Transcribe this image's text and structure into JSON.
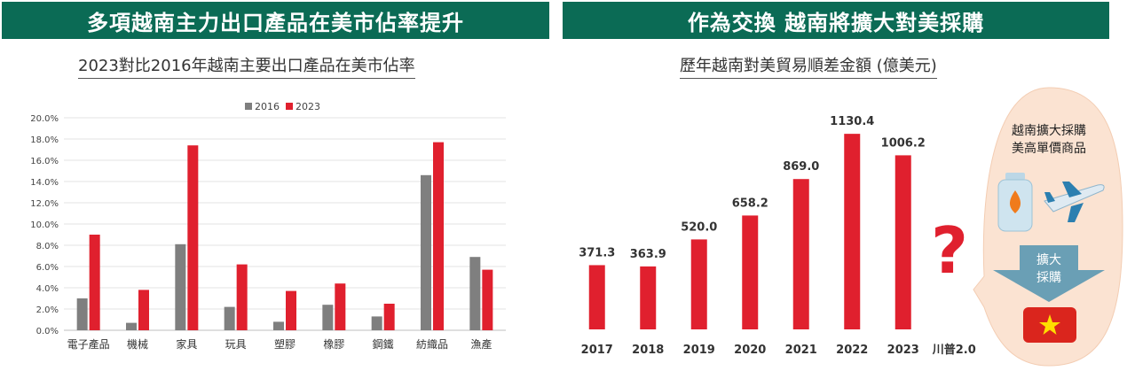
{
  "left_panel": {
    "banner": "多項越南主力出口產品在美市佔率提升",
    "subtitle": "2023對比2016年越南主要出口產品在美市佔率"
  },
  "right_panel": {
    "banner": "作為交換 越南將擴大對美採購",
    "subtitle": "歷年越南對美貿易順差金額 (億美元)",
    "bubble_text_line1": "越南擴大採購",
    "bubble_text_line2": "美高單價商品",
    "arrow_text_line1": "擴大",
    "arrow_text_line2": "採購",
    "question_mark": "?",
    "icons": [
      "gas-cylinder-icon",
      "airplane-icon",
      "vietnam-flag-icon"
    ]
  },
  "colors": {
    "green_banner": "#0b6b55",
    "red": "#e0202e",
    "gray": "#7f7f7f",
    "bubble": "#fbe3d2",
    "arrow": "#6a9fb5"
  },
  "chart_data": [
    {
      "type": "bar",
      "title": "2023對比2016年越南主要出口產品在美市佔率",
      "categories": [
        "電子產品",
        "機械",
        "家具",
        "玩具",
        "塑膠",
        "橡膠",
        "鋼鐵",
        "紡織品",
        "漁產"
      ],
      "series": [
        {
          "name": "2016",
          "color": "#7f7f7f",
          "values": [
            3.0,
            0.7,
            8.1,
            2.2,
            0.8,
            2.4,
            1.3,
            14.6,
            6.9
          ]
        },
        {
          "name": "2023",
          "color": "#e0202e",
          "values": [
            9.0,
            3.8,
            17.4,
            6.2,
            3.7,
            4.4,
            2.5,
            17.7,
            5.7
          ]
        }
      ],
      "yticks": [
        "0.0%",
        "2.0%",
        "4.0%",
        "6.0%",
        "8.0%",
        "10.0%",
        "12.0%",
        "14.0%",
        "16.0%",
        "18.0%",
        "20.0%"
      ],
      "ylim": [
        0,
        20
      ],
      "legend": "top-center",
      "grid": true
    },
    {
      "type": "bar",
      "title": "歷年越南對美貿易順差金額 (億美元)",
      "categories": [
        "2017",
        "2018",
        "2019",
        "2020",
        "2021",
        "2022",
        "2023",
        "川普2.0"
      ],
      "values": [
        371.3,
        363.9,
        520.0,
        658.2,
        869.0,
        1130.4,
        1006.2,
        null
      ],
      "value_labels": [
        "371.3",
        "363.9",
        "520.0",
        "658.2",
        "869.0",
        "1130.4",
        "1006.2",
        ""
      ],
      "ylim": [
        0,
        1300
      ],
      "color": "#e0202e",
      "grid": false
    }
  ]
}
